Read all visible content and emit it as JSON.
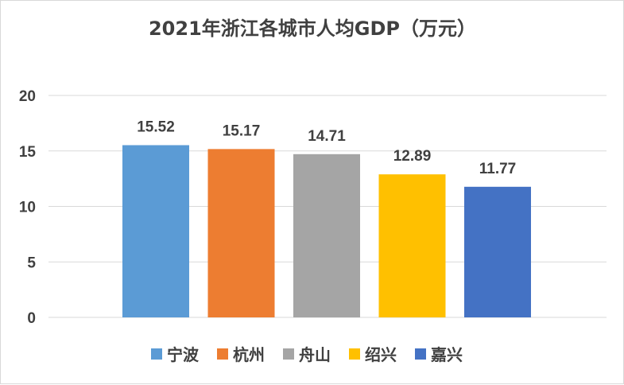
{
  "chart_data": {
    "type": "bar",
    "title": "2021年浙江各城市人均GDP（万元）",
    "categories": [
      "宁波",
      "杭州",
      "舟山",
      "绍兴",
      "嘉兴"
    ],
    "values": [
      15.52,
      15.17,
      14.71,
      12.89,
      11.77
    ],
    "value_labels": [
      "15.52",
      "15.17",
      "14.71",
      "12.89",
      "11.77"
    ],
    "colors": [
      "#5b9bd5",
      "#ed7d31",
      "#a5a5a5",
      "#ffc000",
      "#4472c4"
    ],
    "ylim": [
      0,
      20
    ],
    "yticks": [
      "0",
      "5",
      "10",
      "15",
      "20"
    ],
    "grid": true,
    "legend": "bottom"
  }
}
